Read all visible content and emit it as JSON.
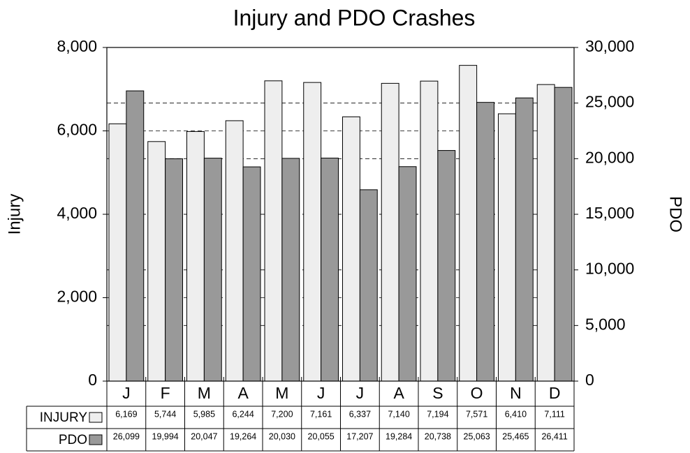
{
  "chart_data": {
    "type": "bar",
    "title": "Injury and PDO Crashes",
    "y_label": "Injury",
    "y2_label": "PDO",
    "categories": [
      "J",
      "F",
      "M",
      "A",
      "M",
      "J",
      "J",
      "A",
      "S",
      "O",
      "N",
      "D"
    ],
    "series": [
      {
        "name": "INJURY",
        "color": "#eeeeee",
        "values": [
          6169,
          5744,
          5985,
          6244,
          7200,
          7161,
          6337,
          7140,
          7194,
          7571,
          6410,
          7111
        ],
        "value_labels": [
          "6,169",
          "5,744",
          "5,985",
          "6,244",
          "7,200",
          "7,161",
          "6,337",
          "7,140",
          "7,194",
          "7,571",
          "6,410",
          "7,111"
        ]
      },
      {
        "name": "PDO",
        "color": "#999999",
        "axis": "y2",
        "values": [
          26099,
          19994,
          20047,
          19264,
          20030,
          20055,
          17207,
          19284,
          20738,
          25063,
          25465,
          26411
        ],
        "value_labels": [
          "26,099",
          "19,994",
          "20,047",
          "19,264",
          "20,030",
          "20,055",
          "17,207",
          "19,284",
          "20,738",
          "25,063",
          "25,465",
          "26,411"
        ]
      }
    ],
    "ylim": [
      0,
      8000
    ],
    "yticks": [
      0,
      {
        "value": 2000,
        "label": "2,000"
      },
      {
        "value": 4000,
        "label": "4,000"
      },
      {
        "value": 6000,
        "label": "6,000"
      },
      {
        "value": 8000,
        "label": "8,000"
      }
    ],
    "y2lim": [
      0,
      30000
    ],
    "y2ticks": [
      0,
      {
        "value": 5000,
        "label": "5,000"
      },
      {
        "value": 10000,
        "label": "10,000"
      },
      {
        "value": 15000,
        "label": "15,000"
      },
      {
        "value": 20000,
        "label": "20,000"
      },
      {
        "value": 25000,
        "label": "25,000"
      },
      {
        "value": 30000,
        "label": "30,000"
      }
    ],
    "grid": true
  }
}
